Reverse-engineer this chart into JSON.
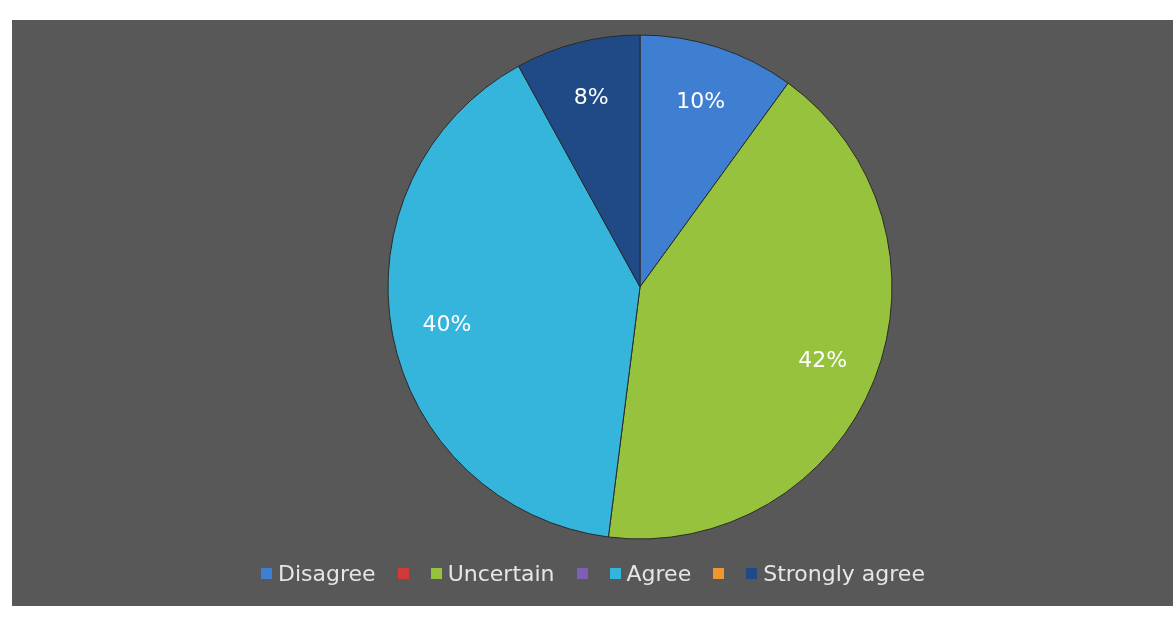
{
  "chart_data": {
    "type": "pie",
    "categories": [
      "Disagree",
      null,
      "Uncertain",
      null,
      "Agree",
      null,
      "Strongly agree"
    ],
    "values": [
      10,
      0,
      42,
      0,
      40,
      0,
      8
    ],
    "colors": [
      "#3f7fd1",
      "#d13a3a",
      "#97c23d",
      "#7f5fb5",
      "#35b5db",
      "#f0962e",
      "#1f4a86"
    ],
    "value_labels": [
      "10%",
      null,
      "42%",
      null,
      "40%",
      null,
      "8%"
    ],
    "legend": "bottom"
  }
}
